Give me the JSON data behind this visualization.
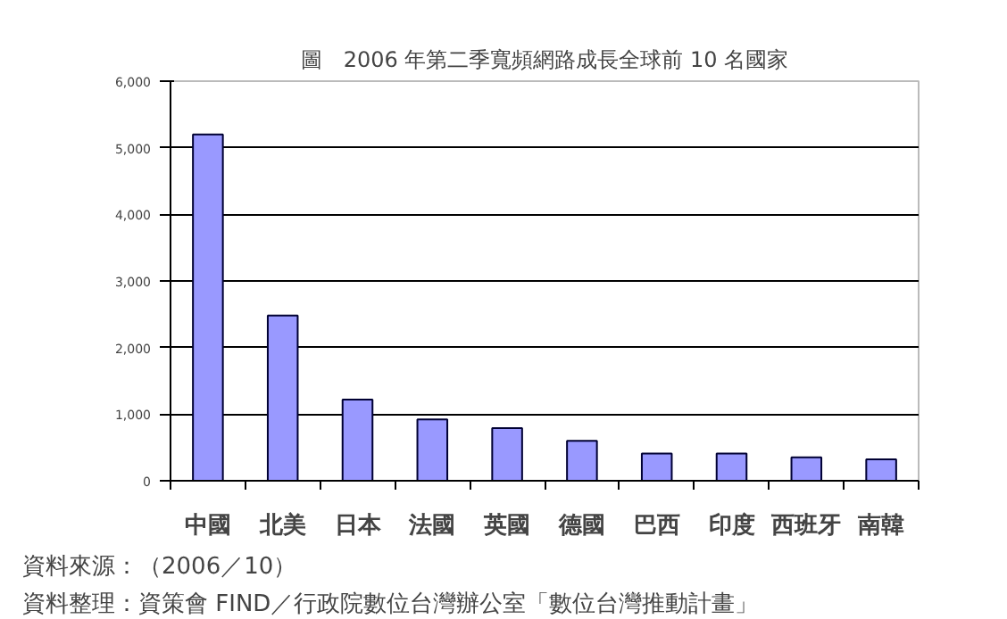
{
  "chart_data": {
    "type": "bar",
    "title": "圖　2006 年第二季寬頻網路成長全球前 10 名國家",
    "categories": [
      "中國",
      "北美",
      "日本",
      "法國",
      "英國",
      "德國",
      "巴西",
      "印度",
      "西班牙",
      "南韓"
    ],
    "values": [
      5200,
      2480,
      1220,
      920,
      790,
      600,
      410,
      410,
      350,
      320
    ],
    "color": "#9999ff",
    "ylim": [
      0,
      6000
    ],
    "yticks": [
      {
        "value": 0,
        "label": "0"
      },
      {
        "value": 1000,
        "label": "1,000"
      },
      {
        "value": 2000,
        "label": "2,000"
      },
      {
        "value": 3000,
        "label": "3,000"
      },
      {
        "value": 4000,
        "label": "4,000"
      },
      {
        "value": 5000,
        "label": "5,000"
      },
      {
        "value": 6000,
        "label": "6,000"
      }
    ],
    "grid": "y",
    "annotations": [
      "資料來源：（2006／10）",
      "資料整理：資策會 FIND／行政院數位台灣辦公室「數位台灣推動計畫」"
    ]
  }
}
